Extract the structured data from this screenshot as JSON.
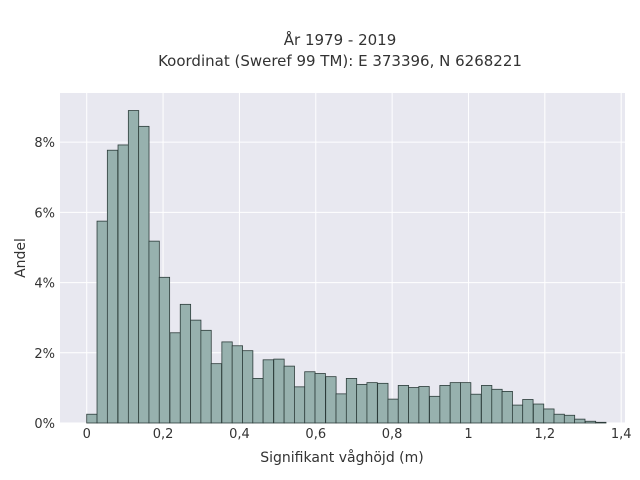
{
  "chart_data": {
    "type": "bar",
    "title_line1": "År 1979 - 2019",
    "title_line2": "Koordinat (Sweref 99 TM): E 373396, N 6268221",
    "xlabel": "Signifikant våghöjd (m)",
    "ylabel": "Andel",
    "xlim": [
      -0.07,
      1.41
    ],
    "ylim": [
      0,
      9.4
    ],
    "grid": true,
    "bin_width": 0.0272,
    "x_ticks": [
      0,
      0.2,
      0.4,
      0.6,
      0.8,
      1.0,
      1.2,
      1.4
    ],
    "x_tick_labels": [
      "0",
      "0,2",
      "0,4",
      "0,6",
      "0,8",
      "1",
      "1,2",
      "1,4"
    ],
    "y_ticks": [
      0,
      2,
      4,
      6,
      8
    ],
    "y_tick_labels": [
      "0%",
      "2%",
      "4%",
      "6%",
      "8%"
    ],
    "bin_starts": [
      0.0,
      0.027,
      0.054,
      0.082,
      0.109,
      0.136,
      0.163,
      0.19,
      0.218,
      0.245,
      0.272,
      0.299,
      0.326,
      0.354,
      0.381,
      0.408,
      0.435,
      0.462,
      0.49,
      0.517,
      0.544,
      0.571,
      0.598,
      0.626,
      0.653,
      0.68,
      0.707,
      0.734,
      0.762,
      0.789,
      0.816,
      0.843,
      0.87,
      0.898,
      0.925,
      0.952,
      0.979,
      1.006,
      1.034,
      1.061,
      1.088,
      1.115,
      1.142,
      1.17,
      1.197,
      1.224,
      1.251,
      1.278,
      1.306,
      1.333,
      1.36
    ],
    "values": [
      0.25,
      5.75,
      7.77,
      7.92,
      8.9,
      8.45,
      5.18,
      4.15,
      2.57,
      3.38,
      2.93,
      2.64,
      1.69,
      2.31,
      2.2,
      2.06,
      1.27,
      1.8,
      1.82,
      1.62,
      1.03,
      1.46,
      1.41,
      1.32,
      0.83,
      1.27,
      1.1,
      1.15,
      1.13,
      0.68,
      1.07,
      1.01,
      1.04,
      0.76,
      1.07,
      1.15,
      1.15,
      0.82,
      1.07,
      0.96,
      0.9,
      0.51,
      0.67,
      0.54,
      0.4,
      0.25,
      0.22,
      0.11,
      0.05,
      0.02,
      0.0
    ],
    "colors": {
      "bar_fill": "#97b1ae",
      "bar_edge": "#2c3c3a",
      "plot_bg": "#e8e8f0",
      "grid": "#ffffff",
      "text": "#333333"
    }
  }
}
